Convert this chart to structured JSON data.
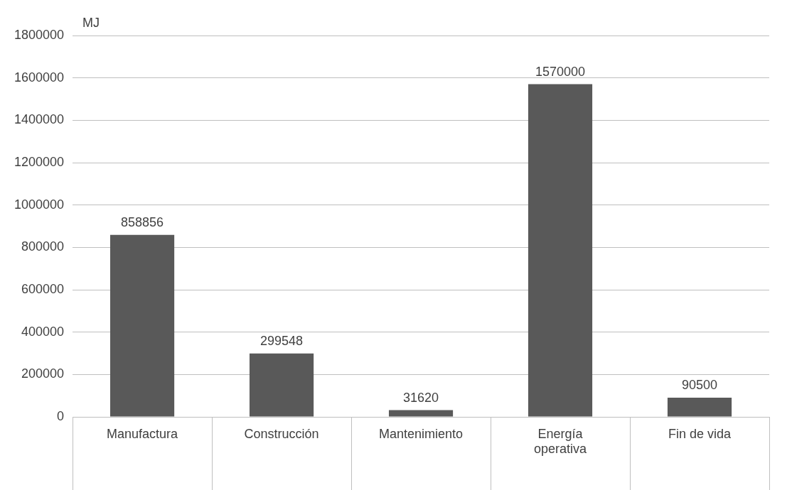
{
  "chart_data": {
    "type": "bar",
    "ylabel": "MJ",
    "categories": [
      "Manufactura",
      "Construcción",
      "Mantenimiento",
      "Energía operativa",
      "Fin de vida"
    ],
    "values": [
      858856,
      299548,
      31620,
      1570000,
      90500
    ],
    "color": "#595959",
    "ylim": [
      0,
      1800000
    ],
    "yticks": [
      0,
      200000,
      400000,
      600000,
      800000,
      1000000,
      1200000,
      1400000,
      1600000,
      1800000
    ],
    "grid": "y",
    "legend": false,
    "data_labels": true
  }
}
